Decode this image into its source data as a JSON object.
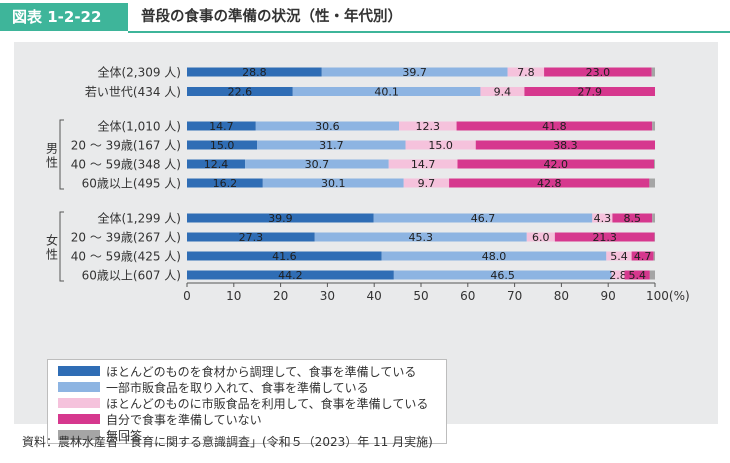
{
  "header": {
    "figure_no": "図表 1-2-22",
    "title": "普段の食事の準備の状況（性・年代別）"
  },
  "chart_data": {
    "type": "bar",
    "orientation": "horizontal",
    "stacked": true,
    "xlim": [
      0,
      100
    ],
    "xticks": [
      "0",
      "10",
      "20",
      "30",
      "40",
      "50",
      "60",
      "70",
      "80",
      "90",
      "100(%)"
    ],
    "groups": [
      {
        "label": ""
      },
      {
        "label": "男性"
      },
      {
        "label": "女性"
      }
    ],
    "categories": [
      "全体(2,309 人)",
      "若い世代(434 人)",
      "全体(1,010 人)",
      "20 ～ 39歳(167 人)",
      "40 ～ 59歳(348 人)",
      "60歳以上(495 人)",
      "全体(1,299 人)",
      "20 ～ 39歳(267 人)",
      "40 ～ 59歳(425 人)",
      "60歳以上(607 人)"
    ],
    "category_group": [
      0,
      0,
      1,
      1,
      1,
      1,
      2,
      2,
      2,
      2
    ],
    "series": [
      {
        "name": "ほとんどのものを食材から調理して、食事を準備している",
        "color": "#2f6db5",
        "values": [
          28.8,
          22.6,
          14.7,
          15.0,
          12.4,
          16.2,
          39.9,
          27.3,
          41.6,
          44.2
        ],
        "labels": [
          "28.8",
          "22.6",
          "14.7",
          "15.0",
          "12.4",
          "16.2",
          "39.9",
          "27.3",
          "41.6",
          "44.2"
        ]
      },
      {
        "name": "一部市販食品を取り入れて、食事を準備している",
        "color": "#8db4e2",
        "values": [
          39.7,
          40.1,
          30.6,
          31.7,
          30.7,
          30.1,
          46.7,
          45.3,
          48.0,
          46.5
        ],
        "labels": [
          "39.7",
          "40.1",
          "30.6",
          "31.7",
          "30.7",
          "30.1",
          "46.7",
          "45.3",
          "48.0",
          "46.5"
        ]
      },
      {
        "name": "ほとんどのものに市販食品を利用して、食事を準備している",
        "color": "#f5c2dc",
        "values": [
          7.8,
          9.4,
          12.3,
          15.0,
          14.7,
          9.7,
          4.3,
          6.0,
          5.4,
          2.8
        ],
        "labels": [
          "7.8",
          "9.4",
          "12.3",
          "15.0",
          "14.7",
          "9.7",
          "4.3",
          "6.0",
          "5.4",
          "2.8"
        ]
      },
      {
        "name": "自分で食事を準備していない",
        "color": "#d6388e",
        "values": [
          23.0,
          27.9,
          41.8,
          38.3,
          42.0,
          42.8,
          8.5,
          21.3,
          4.7,
          5.4
        ],
        "labels": [
          "23.0",
          "27.9",
          "41.8",
          "38.3",
          "42.0",
          "42.8",
          "8.5",
          "21.3",
          "4.7",
          "5.4"
        ]
      },
      {
        "name": "無回答",
        "color": "#a5a5a5",
        "values": [
          0.7,
          0.0,
          0.6,
          0.0,
          0.2,
          1.2,
          0.6,
          0.1,
          0.3,
          1.1
        ],
        "labels": [
          "",
          "",
          "",
          "",
          "",
          "",
          "",
          "",
          "",
          ""
        ]
      }
    ]
  },
  "source": "資料：農林水産省「食育に関する意識調査」(令和５（2023）年 11 月実施)"
}
